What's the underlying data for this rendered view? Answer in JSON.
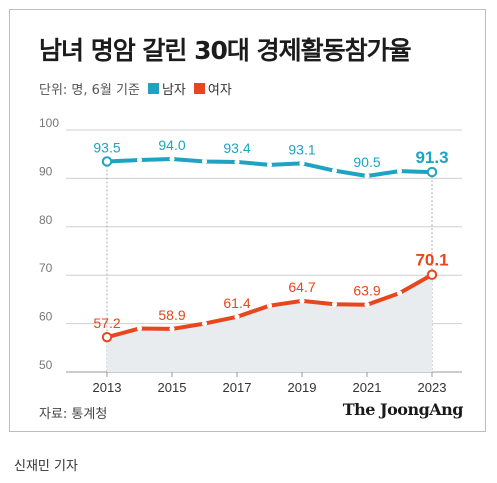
{
  "header": {
    "title": "남녀 명암 갈린 30대 경제활동참가율"
  },
  "legend": {
    "unit": "단위: 명, 6월 기준",
    "men_label": "남자",
    "women_label": "여자"
  },
  "footer": {
    "source": "자료: 통계청",
    "brand": "The JoongAng",
    "byline": "신재민 기자"
  },
  "colors": {
    "men": "#1ea3c3",
    "women": "#e8461c",
    "area": "#e9ecef",
    "grid": "#cfcfcf"
  },
  "chart_data": {
    "type": "line",
    "x": [
      2013,
      2014,
      2015,
      2016,
      2017,
      2018,
      2019,
      2020,
      2021,
      2022,
      2023
    ],
    "x_tick_labels": [
      "2013",
      "2015",
      "2017",
      "2019",
      "2021",
      "2023"
    ],
    "ylim": [
      50,
      100
    ],
    "y_ticks": [
      50,
      60,
      70,
      80,
      90,
      100
    ],
    "grid": true,
    "series": [
      {
        "name": "남자",
        "values": [
          93.5,
          93.8,
          94.0,
          93.5,
          93.4,
          92.8,
          93.1,
          91.6,
          90.5,
          91.5,
          91.3
        ]
      },
      {
        "name": "여자",
        "values": [
          57.2,
          59.0,
          58.9,
          60.0,
          61.4,
          63.7,
          64.7,
          64.0,
          63.9,
          66.3,
          70.1
        ]
      }
    ],
    "data_labels": {
      "남자": [
        [
          "2013",
          "93.5"
        ],
        [
          "2015",
          "94.0"
        ],
        [
          "2017",
          "93.4"
        ],
        [
          "2019",
          "93.1"
        ],
        [
          "2021",
          "90.5"
        ],
        [
          "2023",
          "91.3"
        ]
      ],
      "여자": [
        [
          "2013",
          "57.2"
        ],
        [
          "2015",
          "58.9"
        ],
        [
          "2017",
          "61.4"
        ],
        [
          "2019",
          "64.7"
        ],
        [
          "2021",
          "63.9"
        ],
        [
          "2023",
          "70.1"
        ]
      ]
    }
  }
}
